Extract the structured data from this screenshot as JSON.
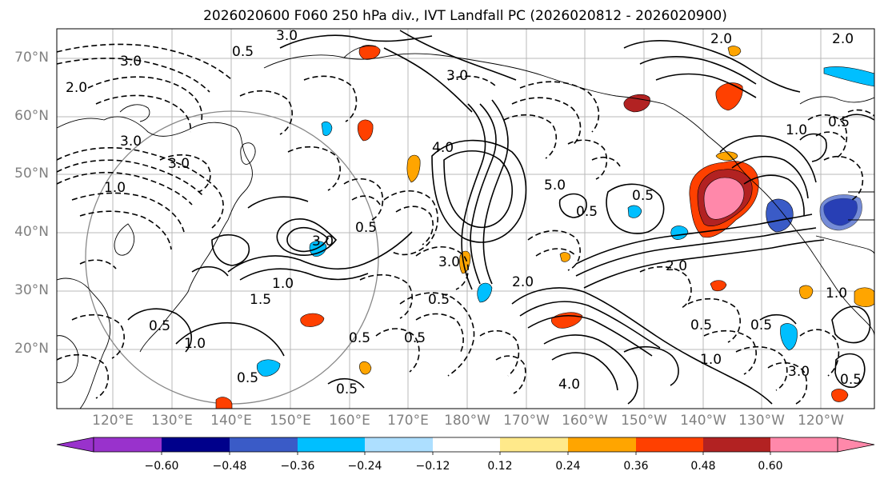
{
  "title": "2026020600 F060 250 hPa div., IVT Landfall PC (2026020812 - 2026020900)",
  "lat_labels": [
    "70°N",
    "60°N",
    "50°N",
    "40°N",
    "30°N",
    "20°N"
  ],
  "lon_labels": [
    "120°E",
    "130°E",
    "140°E",
    "150°E",
    "160°E",
    "170°E",
    "180°W",
    "170°W",
    "160°W",
    "150°W",
    "140°W",
    "130°W",
    "120°W"
  ],
  "colorbar": {
    "ticks": [
      "−0.60",
      "−0.48",
      "−0.36",
      "−0.24",
      "−0.12",
      "0.12",
      "0.24",
      "0.36",
      "0.48",
      "0.60"
    ],
    "colors": [
      "#9932CC",
      "#00008B",
      "#3A5BC7",
      "#00BFFF",
      "#ADDFFF",
      "#FFFFFF",
      "#FFE98A",
      "#FFA500",
      "#FF4000",
      "#B22222",
      "#FF88AA"
    ]
  },
  "contour_labels": {
    "c1": "3.0",
    "c2": "3.0",
    "c3": "2.0",
    "c4": "2.0",
    "c5": "3.0",
    "c6": "2.0",
    "c7": "3.0",
    "c8": "4.0",
    "c9": "5.0",
    "c10": "0.5",
    "c11": "3.0",
    "c12": "0.5",
    "c13": "1.5",
    "c14": "1.0",
    "c15": "0.5",
    "c16": "1.0",
    "c17": "0.5",
    "c18": "0.5",
    "c19": "0.5",
    "c20": "3.0",
    "c21": "2.0",
    "c22": "0.5",
    "c23": "0.5",
    "c24": "4.0",
    "c25": "2.0",
    "c26": "1.0",
    "c27": "0.5",
    "c28": "0.5",
    "c29": "1.0",
    "c30": "3.0",
    "c31": "0.5",
    "c32": "0.5",
    "c33": "1.0",
    "c34": "1.0",
    "c35": "3.0",
    "c36": "0.5",
    "c37": "0.5"
  }
}
